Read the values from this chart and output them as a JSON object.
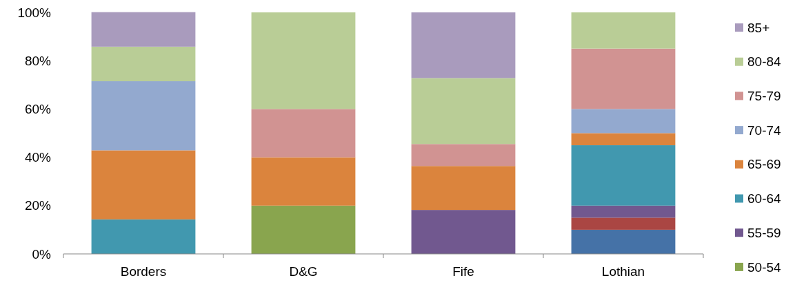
{
  "chart_data": {
    "type": "bar",
    "stacked": true,
    "categories": [
      "Borders",
      "D&G",
      "Fife",
      "Lothian"
    ],
    "ylim": [
      0,
      100
    ],
    "yticks": [
      {
        "value": 0,
        "label": "0%"
      },
      {
        "value": 20,
        "label": "20%"
      },
      {
        "value": 40,
        "label": "40%"
      },
      {
        "value": 60,
        "label": "60%"
      },
      {
        "value": 80,
        "label": "80%"
      },
      {
        "value": 100,
        "label": "100%"
      }
    ],
    "legend": "right",
    "grid": false,
    "series": [
      {
        "color": "#4572a7",
        "values": [
          null,
          null,
          null,
          10
        ]
      },
      {
        "color": "#aa4643",
        "values": [
          null,
          null,
          null,
          5
        ]
      },
      {
        "name": "50-54",
        "color": "#89a54e",
        "values": [
          null,
          20,
          null,
          null
        ]
      },
      {
        "name": "55-59",
        "color": "#71588f",
        "values": [
          null,
          null,
          18.2,
          5
        ]
      },
      {
        "name": "60-64",
        "color": "#4198af",
        "values": [
          14.3,
          null,
          null,
          25
        ]
      },
      {
        "name": "65-69",
        "color": "#db843d",
        "values": [
          28.6,
          20,
          18.2,
          5
        ]
      },
      {
        "name": "70-74",
        "color": "#93a9cf",
        "values": [
          28.6,
          null,
          null,
          10
        ]
      },
      {
        "name": "75-79",
        "color": "#d19392",
        "values": [
          null,
          20,
          9.1,
          25
        ]
      },
      {
        "name": "80-84",
        "color": "#b9cd96",
        "values": [
          14.3,
          40,
          27.3,
          15
        ]
      },
      {
        "name": "85+",
        "color": "#a99bbd",
        "values": [
          14.3,
          null,
          27.2,
          null
        ]
      }
    ]
  }
}
